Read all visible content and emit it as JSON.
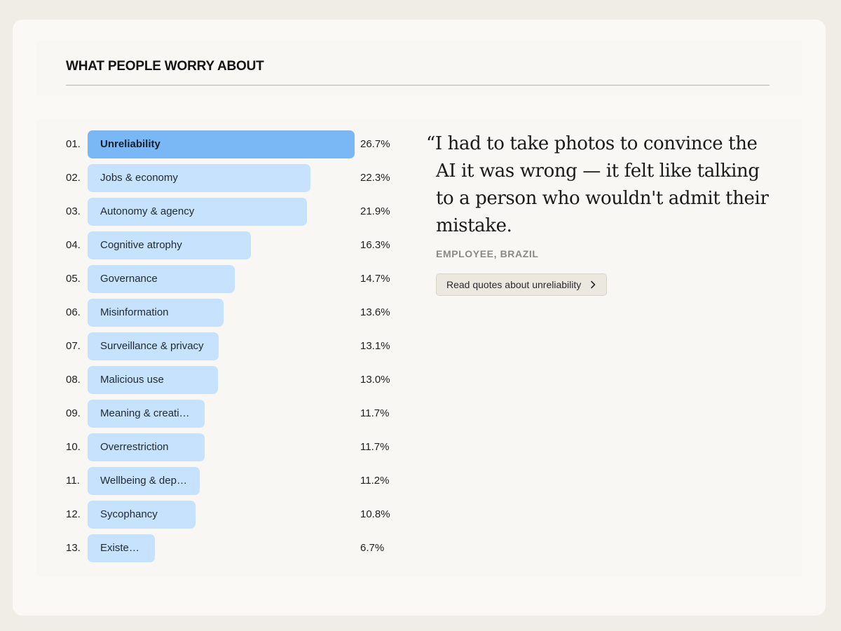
{
  "section": {
    "title": "WHAT PEOPLE WORRY ABOUT"
  },
  "chart_data": {
    "type": "bar",
    "orientation": "horizontal",
    "title": "WHAT PEOPLE WORRY ABOUT",
    "unit": "%",
    "xlim": [
      0,
      26.7
    ],
    "highlighted_index": 0,
    "categories": [
      "Unreliability",
      "Jobs & economy",
      "Autonomy & agency",
      "Cognitive atrophy",
      "Governance",
      "Misinformation",
      "Surveillance & privacy",
      "Malicious use",
      "Meaning & creati…",
      "Overrestriction",
      "Wellbeing & dep…",
      "Sycophancy",
      "Existe…"
    ],
    "ranks": [
      "01.",
      "02.",
      "03.",
      "04.",
      "05.",
      "06.",
      "07.",
      "08.",
      "09.",
      "10.",
      "11.",
      "12.",
      "13."
    ],
    "values": [
      26.7,
      22.3,
      21.9,
      16.3,
      14.7,
      13.6,
      13.1,
      13.0,
      11.7,
      11.7,
      11.2,
      10.8,
      6.7
    ],
    "value_labels": [
      "26.7%",
      "22.3%",
      "21.9%",
      "16.3%",
      "14.7%",
      "13.6%",
      "13.1%",
      "13.0%",
      "11.7%",
      "11.7%",
      "11.2%",
      "10.8%",
      "6.7%"
    ],
    "colors": {
      "bar": "#c6e2fd",
      "highlight": "#79b8f5"
    }
  },
  "quote": {
    "text": "“I had to take photos to convince the AI it was wrong — it felt like talking to a person who wouldn't admit their mistake.",
    "attribution": "EMPLOYEE, BRAZIL",
    "button_label": "Read quotes about unreliability",
    "button_icon": "chevron-right-icon"
  }
}
